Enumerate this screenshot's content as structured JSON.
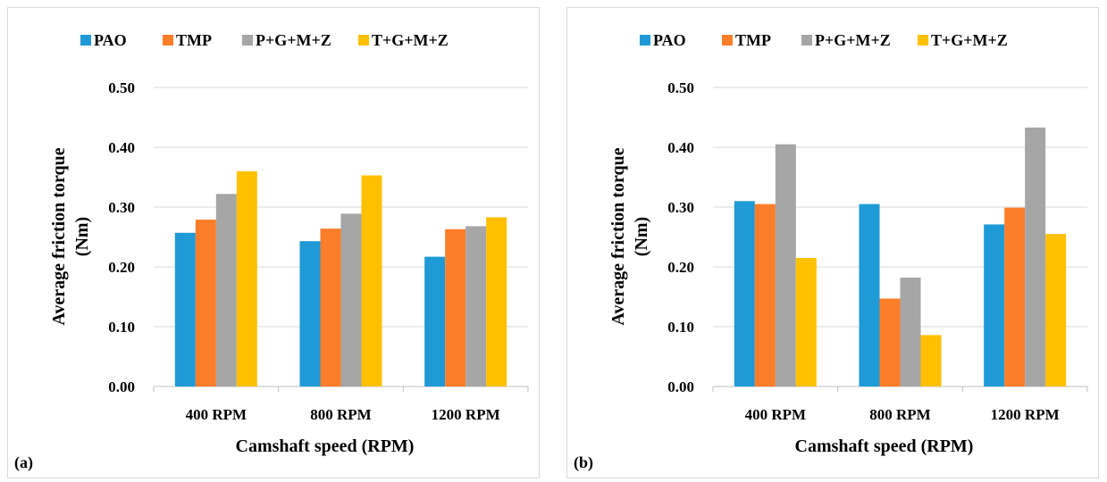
{
  "colors": {
    "PAO": "#1f9ad6",
    "TMP": "#fd7e2a",
    "P+G+M+Z": "#a6a6a6",
    "T+G+M+Z": "#ffc000",
    "grid": "#d9d9d9",
    "axis": "#bfbfbf"
  },
  "chart_data": [
    {
      "panel_label": "(a)",
      "type": "bar",
      "categories": [
        "400 RPM",
        "800 RPM",
        "1200 RPM"
      ],
      "series": [
        {
          "name": "PAO",
          "values": [
            0.257,
            0.243,
            0.217
          ]
        },
        {
          "name": "TMP",
          "values": [
            0.279,
            0.264,
            0.263
          ]
        },
        {
          "name": "P+G+M+Z",
          "values": [
            0.322,
            0.289,
            0.268
          ]
        },
        {
          "name": "T+G+M+Z",
          "values": [
            0.36,
            0.353,
            0.283
          ]
        }
      ],
      "xlabel": "Camshaft speed (RPM)",
      "ylabel": [
        "Average friction torque",
        "(Nm)"
      ],
      "ylim": [
        0,
        0.5
      ],
      "yticks": [
        "0.00",
        "0.10",
        "0.20",
        "0.30",
        "0.40",
        "0.50"
      ],
      "grid": true,
      "legend_position": "top"
    },
    {
      "panel_label": "(b)",
      "type": "bar",
      "categories": [
        "400 RPM",
        "800 RPM",
        "1200 RPM"
      ],
      "series": [
        {
          "name": "PAO",
          "values": [
            0.31,
            0.305,
            0.271
          ]
        },
        {
          "name": "TMP",
          "values": [
            0.305,
            0.147,
            0.299
          ]
        },
        {
          "name": "P+G+M+Z",
          "values": [
            0.405,
            0.182,
            0.433
          ]
        },
        {
          "name": "T+G+M+Z",
          "values": [
            0.215,
            0.086,
            0.255
          ]
        }
      ],
      "xlabel": "Camshaft speed (RPM)",
      "ylabel": [
        "Average friction torque",
        "(Nm)"
      ],
      "ylim": [
        0,
        0.5
      ],
      "yticks": [
        "0.00",
        "0.10",
        "0.20",
        "0.30",
        "0.40",
        "0.50"
      ],
      "grid": true,
      "legend_position": "top"
    }
  ]
}
